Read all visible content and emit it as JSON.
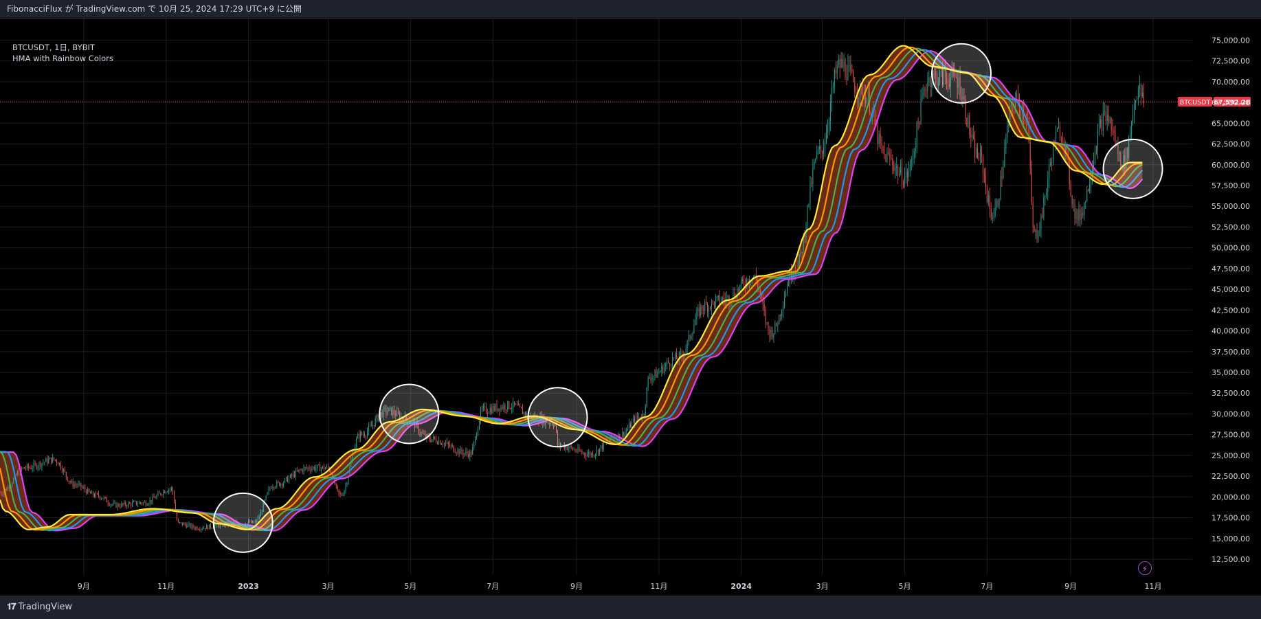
{
  "header": {
    "published": "FibonacciFlux が TradingView.com で 10月 25, 2024 17:29 UTC+9 に公開"
  },
  "legend": {
    "symbol": "BTCUSDT, 1日, BYBIT",
    "indicator": "HMA with Rainbow Colors"
  },
  "footer": {
    "brand": "TradingView",
    "logo_glyph": "𝟏𝟕"
  },
  "icons": {
    "bolt": "⚡"
  },
  "price_label": {
    "symbol": "BTCUSDT",
    "value": "67,592.28",
    "price": 67592.28,
    "color": "#f23645"
  },
  "chart_data": {
    "type": "candlestick",
    "title": "BTCUSDT, 1日, BYBIT",
    "x_start": "2022-07-01",
    "x_end": "2024-11-30",
    "ylim": [
      10600,
      77600
    ],
    "y_ticks": [
      {
        "v": 12500,
        "label": "12,500.00"
      },
      {
        "v": 15000,
        "label": "15,000.00"
      },
      {
        "v": 17500,
        "label": "17,500.00"
      },
      {
        "v": 20000,
        "label": "20,000.00"
      },
      {
        "v": 22500,
        "label": "22,500.00"
      },
      {
        "v": 25000,
        "label": "25,000.00"
      },
      {
        "v": 27500,
        "label": "27,500.00"
      },
      {
        "v": 30000,
        "label": "30,000.00"
      },
      {
        "v": 32500,
        "label": "32,500.00"
      },
      {
        "v": 35000,
        "label": "35,000.00"
      },
      {
        "v": 37500,
        "label": "37,500.00"
      },
      {
        "v": 40000,
        "label": "40,000.00"
      },
      {
        "v": 42500,
        "label": "42,500.00"
      },
      {
        "v": 45000,
        "label": "45,000.00"
      },
      {
        "v": 47500,
        "label": "47,500.00"
      },
      {
        "v": 50000,
        "label": "50,000.00"
      },
      {
        "v": 52500,
        "label": "52,500.00"
      },
      {
        "v": 55000,
        "label": "55,000.00"
      },
      {
        "v": 57500,
        "label": "57,500.00"
      },
      {
        "v": 60000,
        "label": "60,000.00"
      },
      {
        "v": 62500,
        "label": "62,500.00"
      },
      {
        "v": 65000,
        "label": "65,000.00"
      },
      {
        "v": 67500,
        "label": "67,500.00"
      },
      {
        "v": 70000,
        "label": "70,000.00"
      },
      {
        "v": 72500,
        "label": "72,500.00"
      },
      {
        "v": 75000,
        "label": "75,000.00"
      }
    ],
    "x_ticks": [
      {
        "date": "2022-09-01",
        "label": "9月",
        "bold": false
      },
      {
        "date": "2022-11-01",
        "label": "11月",
        "bold": false
      },
      {
        "date": "2023-01-01",
        "label": "2023",
        "bold": true
      },
      {
        "date": "2023-03-01",
        "label": "3月",
        "bold": false
      },
      {
        "date": "2023-05-01",
        "label": "5月",
        "bold": false
      },
      {
        "date": "2023-07-01",
        "label": "7月",
        "bold": false
      },
      {
        "date": "2023-09-01",
        "label": "9月",
        "bold": false
      },
      {
        "date": "2023-11-01",
        "label": "11月",
        "bold": false
      },
      {
        "date": "2024-01-01",
        "label": "2024",
        "bold": true
      },
      {
        "date": "2024-03-01",
        "label": "3月",
        "bold": false
      },
      {
        "date": "2024-05-01",
        "label": "5月",
        "bold": false
      },
      {
        "date": "2024-07-01",
        "label": "7月",
        "bold": false
      },
      {
        "date": "2024-09-01",
        "label": "9月",
        "bold": false
      },
      {
        "date": "2024-11-01",
        "label": "11月",
        "bold": false
      }
    ],
    "colors": {
      "up": "#26a69a",
      "down": "#ef5350",
      "fill": "#8b3a1a",
      "grid": "#1a1c22"
    },
    "candles_end": "2024-10-25",
    "price_path": [
      [
        "2022-07-01",
        20500
      ],
      [
        "2022-07-20",
        23500
      ],
      [
        "2022-08-10",
        24500
      ],
      [
        "2022-08-25",
        21500
      ],
      [
        "2022-09-10",
        20200
      ],
      [
        "2022-09-25",
        19000
      ],
      [
        "2022-10-15",
        19300
      ],
      [
        "2022-11-05",
        21000
      ],
      [
        "2022-11-10",
        16800
      ],
      [
        "2022-11-25",
        16300
      ],
      [
        "2022-12-20",
        16800
      ],
      [
        "2023-01-05",
        16900
      ],
      [
        "2023-01-20",
        21500
      ],
      [
        "2023-02-15",
        23500
      ],
      [
        "2023-03-01",
        23500
      ],
      [
        "2023-03-10",
        20200
      ],
      [
        "2023-03-25",
        27500
      ],
      [
        "2023-04-14",
        30400
      ],
      [
        "2023-04-28",
        29400
      ],
      [
        "2023-05-15",
        27000
      ],
      [
        "2023-06-14",
        25200
      ],
      [
        "2023-06-24",
        30500
      ],
      [
        "2023-07-14",
        31000
      ],
      [
        "2023-08-01",
        29500
      ],
      [
        "2023-08-16",
        28900
      ],
      [
        "2023-08-18",
        26200
      ],
      [
        "2023-09-11",
        25200
      ],
      [
        "2023-10-01",
        27300
      ],
      [
        "2023-10-20",
        29800
      ],
      [
        "2023-10-25",
        34500
      ],
      [
        "2023-11-15",
        36700
      ],
      [
        "2023-12-05",
        43000
      ],
      [
        "2023-12-20",
        43800
      ],
      [
        "2024-01-10",
        46500
      ],
      [
        "2024-01-23",
        39800
      ],
      [
        "2024-02-10",
        47500
      ],
      [
        "2024-02-28",
        61500
      ],
      [
        "2024-03-14",
        72000
      ],
      [
        "2024-04-01",
        68500
      ],
      [
        "2024-04-17",
        61000
      ],
      [
        "2024-05-01",
        58500
      ],
      [
        "2024-05-20",
        70500
      ],
      [
        "2024-06-07",
        70500
      ],
      [
        "2024-06-25",
        61000
      ],
      [
        "2024-07-05",
        54000
      ],
      [
        "2024-07-22",
        67800
      ],
      [
        "2024-07-30",
        66000
      ],
      [
        "2024-08-05",
        51500
      ],
      [
        "2024-08-24",
        64000
      ],
      [
        "2024-09-06",
        53700
      ],
      [
        "2024-09-27",
        65800
      ],
      [
        "2024-10-10",
        60300
      ],
      [
        "2024-10-21",
        69000
      ],
      [
        "2024-10-25",
        67600
      ]
    ],
    "hma_path": [
      [
        "2022-07-01",
        25500
      ],
      [
        "2022-07-15",
        18200
      ],
      [
        "2022-08-01",
        16000
      ],
      [
        "2022-08-15",
        16300
      ],
      [
        "2022-09-01",
        17800
      ],
      [
        "2022-10-01",
        17800
      ],
      [
        "2022-11-01",
        18500
      ],
      [
        "2022-12-01",
        18000
      ],
      [
        "2022-12-20",
        16700
      ],
      [
        "2023-01-10",
        16000
      ],
      [
        "2023-02-01",
        18500
      ],
      [
        "2023-03-01",
        22300
      ],
      [
        "2023-04-01",
        25600
      ],
      [
        "2023-04-25",
        28900
      ],
      [
        "2023-05-20",
        30400
      ],
      [
        "2023-06-20",
        29600
      ],
      [
        "2023-07-15",
        28700
      ],
      [
        "2023-08-10",
        29600
      ],
      [
        "2023-09-10",
        28000
      ],
      [
        "2023-10-10",
        26200
      ],
      [
        "2023-11-01",
        29500
      ],
      [
        "2023-12-01",
        37000
      ],
      [
        "2024-01-01",
        43500
      ],
      [
        "2024-01-25",
        46400
      ],
      [
        "2024-02-15",
        47000
      ],
      [
        "2024-03-01",
        52000
      ],
      [
        "2024-03-20",
        62000
      ],
      [
        "2024-04-15",
        70500
      ],
      [
        "2024-05-10",
        74000
      ],
      [
        "2024-06-01",
        71500
      ],
      [
        "2024-06-25",
        70800
      ],
      [
        "2024-07-15",
        68000
      ],
      [
        "2024-08-05",
        63000
      ],
      [
        "2024-08-25",
        62500
      ],
      [
        "2024-09-15",
        59000
      ],
      [
        "2024-10-05",
        57400
      ],
      [
        "2024-10-25",
        60000
      ]
    ],
    "ribbon": [
      {
        "color": "#ffeb3b",
        "lag": -10,
        "offset": 0.45
      },
      {
        "color": "#ff9800",
        "lag": -5,
        "offset": 0.2
      },
      {
        "color": "#4caf50",
        "lag": 0,
        "offset": 0
      },
      {
        "color": "#2196f3",
        "lag": 5,
        "offset": -0.2
      },
      {
        "color": "#e040fb",
        "lag": 10,
        "offset": -0.4
      }
    ],
    "highlight_circles": [
      {
        "date": "2022-12-28",
        "price": 16900
      },
      {
        "date": "2023-04-30",
        "price": 30000
      },
      {
        "date": "2023-08-18",
        "price": 29600
      },
      {
        "date": "2024-06-12",
        "price": 71000
      },
      {
        "date": "2024-10-17",
        "price": 59500
      }
    ]
  }
}
